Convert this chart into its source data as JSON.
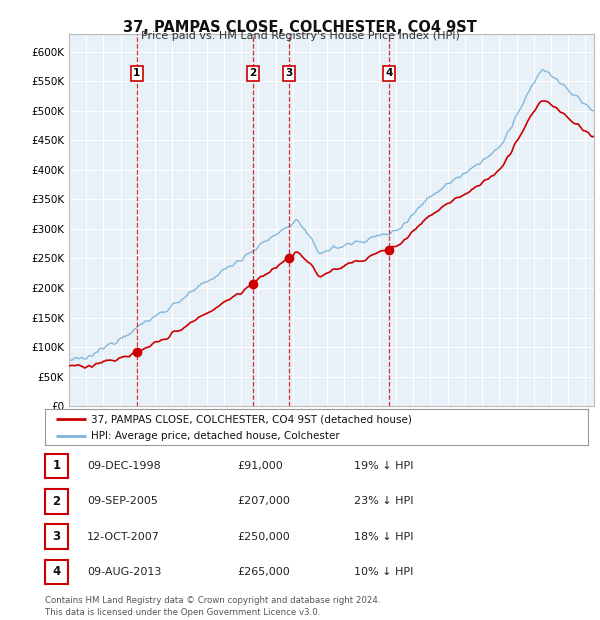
{
  "title": "37, PAMPAS CLOSE, COLCHESTER, CO4 9ST",
  "subtitle": "Price paid vs. HM Land Registry's House Price Index (HPI)",
  "ylim": [
    0,
    630000
  ],
  "yticks": [
    0,
    50000,
    100000,
    150000,
    200000,
    250000,
    300000,
    350000,
    400000,
    450000,
    500000,
    550000,
    600000
  ],
  "xlim_start": 1995.0,
  "xlim_end": 2025.5,
  "plot_bg": "#e8f0f8",
  "grid_color": "#ffffff",
  "sale_dates": [
    1998.94,
    2005.69,
    2007.79,
    2013.6
  ],
  "sale_prices": [
    91000,
    207000,
    250000,
    265000
  ],
  "sale_labels": [
    "1",
    "2",
    "3",
    "4"
  ],
  "hpi_line_color": "#7ab3d8",
  "price_line_color": "#cc0000",
  "marker_color": "#cc0000",
  "legend_line1": "37, PAMPAS CLOSE, COLCHESTER, CO4 9ST (detached house)",
  "legend_line2": "HPI: Average price, detached house, Colchester",
  "table_data": [
    [
      "1",
      "09-DEC-1998",
      "£91,000",
      "19% ↓ HPI"
    ],
    [
      "2",
      "09-SEP-2005",
      "£207,000",
      "23% ↓ HPI"
    ],
    [
      "3",
      "12-OCT-2007",
      "£250,000",
      "18% ↓ HPI"
    ],
    [
      "4",
      "09-AUG-2013",
      "£265,000",
      "10% ↓ HPI"
    ]
  ],
  "footnote": "Contains HM Land Registry data © Crown copyright and database right 2024.\nThis data is licensed under the Open Government Licence v3.0."
}
